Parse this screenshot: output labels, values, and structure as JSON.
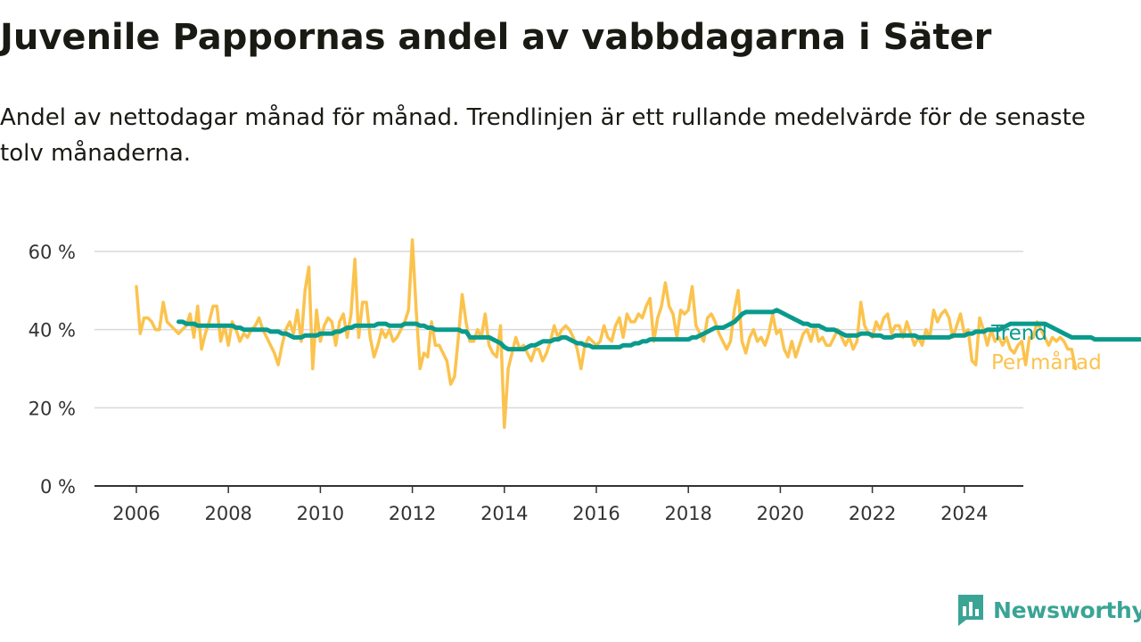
{
  "header": {
    "title": "Juvenile Pappornas andel av vabbdagarna i Säter",
    "subtitle": "Andel av nettodagar månad för månad. Trendlinjen är ett rullande medelvärde för de senaste tolv månaderna."
  },
  "brand": {
    "name": "Newsworthy",
    "color": "#3aa495",
    "icon": "bar-chart-speech-bubble-icon"
  },
  "chart_data": {
    "type": "line",
    "ylim": [
      0,
      65
    ],
    "y_ticks": [
      0,
      20,
      40,
      60
    ],
    "y_tick_labels": [
      "0 %",
      "20 %",
      "40 %",
      "60 %"
    ],
    "x_range": [
      2006,
      2024.9
    ],
    "x_ticks": [
      2006,
      2008,
      2010,
      2012,
      2014,
      2016,
      2018,
      2020,
      2022,
      2024
    ],
    "x_tick_labels": [
      "2006",
      "2008",
      "2010",
      "2012",
      "2014",
      "2016",
      "2018",
      "2020",
      "2022",
      "2024"
    ],
    "grid": "horizontal",
    "legend": "inline-right",
    "series": [
      {
        "name": "Per månad",
        "color": "#fbc34e",
        "x_start": 2006.0,
        "x_step_months": 1,
        "values": [
          51,
          39,
          43,
          43,
          42,
          40,
          40,
          47,
          42,
          41,
          40,
          39,
          40,
          41,
          44,
          38,
          46,
          35,
          39,
          42,
          46,
          46,
          37,
          41,
          36,
          42,
          40,
          37,
          39,
          38,
          40,
          41,
          43,
          40,
          38,
          36,
          34,
          31,
          36,
          40,
          42,
          39,
          45,
          37,
          50,
          56,
          30,
          45,
          37,
          41,
          43,
          42,
          36,
          42,
          44,
          38,
          44,
          58,
          38,
          47,
          47,
          38,
          33,
          36,
          40,
          38,
          40,
          37,
          38,
          40,
          42,
          45,
          63,
          45,
          30,
          34,
          33,
          42,
          36,
          36,
          34,
          32,
          26,
          28,
          38,
          49,
          42,
          37,
          37,
          40,
          38,
          44,
          36,
          34,
          33,
          41,
          15,
          30,
          34,
          38,
          35,
          36,
          34,
          32,
          35,
          35,
          32,
          34,
          37,
          41,
          38,
          40,
          41,
          40,
          38,
          35,
          30,
          36,
          38,
          37,
          36,
          37,
          41,
          38,
          37,
          41,
          43,
          38,
          44,
          42,
          42,
          44,
          43,
          46,
          48,
          37,
          43,
          46,
          52,
          46,
          44,
          38,
          45,
          44,
          45,
          51,
          41,
          39,
          37,
          43,
          44,
          42,
          39,
          37,
          35,
          37,
          45,
          50,
          37,
          34,
          38,
          40,
          37,
          38,
          36,
          39,
          44,
          39,
          40,
          35,
          33,
          37,
          33,
          36,
          39,
          40,
          37,
          41,
          37,
          38,
          36,
          36,
          38,
          40,
          38,
          36,
          38,
          35,
          37,
          47,
          41,
          39,
          38,
          42,
          40,
          43,
          44,
          39,
          41,
          41,
          38,
          42,
          39,
          36,
          38,
          36,
          40,
          38,
          45,
          42,
          44,
          45,
          43,
          38,
          41,
          44,
          39,
          40,
          32,
          31,
          43,
          40,
          36,
          40,
          37,
          38,
          36,
          38,
          35,
          34,
          36,
          37,
          31,
          38,
          38,
          42,
          40,
          38,
          36,
          38,
          37,
          38,
          37,
          35,
          35,
          30
        ]
      },
      {
        "name": "Trend",
        "color": "#0a9a8c",
        "x_start": 2006.92,
        "x_step_months": 1,
        "values": [
          42,
          42,
          41.5,
          41.5,
          41.5,
          41,
          41,
          41,
          41,
          41,
          41,
          41,
          41,
          41,
          41,
          40.5,
          40.5,
          40,
          40,
          40,
          40,
          40,
          40,
          40,
          39.5,
          39.5,
          39.5,
          39,
          39,
          38.5,
          38,
          38,
          38,
          38.5,
          38.5,
          38.5,
          38.5,
          39,
          39,
          39,
          39,
          39.5,
          39.5,
          40,
          40.5,
          40.5,
          41,
          41,
          41,
          41,
          41,
          41,
          41.5,
          41.5,
          41.5,
          41,
          41,
          41,
          41,
          41.5,
          41.5,
          41.5,
          41.5,
          41,
          41,
          40.5,
          40.5,
          40,
          40,
          40,
          40,
          40,
          40,
          40,
          39.5,
          39.5,
          38,
          38,
          38,
          38,
          38,
          38,
          37.5,
          37,
          36.5,
          35.5,
          35,
          35,
          35,
          35,
          35,
          35.5,
          36,
          36,
          36.5,
          37,
          37,
          37,
          37.5,
          37.5,
          38,
          38,
          37.5,
          37,
          36.5,
          36.5,
          36,
          36,
          35.5,
          35.5,
          35.5,
          35.5,
          35.5,
          35.5,
          35.5,
          35.5,
          36,
          36,
          36,
          36.5,
          36.5,
          37,
          37,
          37.5,
          37.5,
          37.5,
          37.5,
          37.5,
          37.5,
          37.5,
          37.5,
          37.5,
          37.5,
          37.5,
          38,
          38,
          38.5,
          39,
          39.5,
          40,
          40.5,
          40.5,
          40.5,
          41,
          41.5,
          42,
          43,
          44,
          44.5,
          44.5,
          44.5,
          44.5,
          44.5,
          44.5,
          44.5,
          44.5,
          45,
          44.5,
          44,
          43.5,
          43,
          42.5,
          42,
          41.5,
          41.5,
          41,
          41,
          41,
          40.5,
          40,
          40,
          40,
          39.5,
          39,
          38.5,
          38.5,
          38.5,
          38.5,
          39,
          39,
          39,
          38.5,
          38.5,
          38.5,
          38,
          38,
          38,
          38.5,
          38.5,
          38.5,
          38.5,
          38.5,
          38.5,
          38,
          38,
          38,
          38,
          38,
          38,
          38,
          38,
          38,
          38.5,
          38.5,
          38.5,
          38.5,
          39,
          39,
          39.5,
          39.5,
          39.5,
          40,
          40,
          40,
          40,
          40.5,
          41,
          41.5,
          41.5,
          41.5,
          41.5,
          41.5,
          41.5,
          41.5,
          41.5,
          41.5,
          41.5,
          41,
          40.5,
          40,
          39.5,
          39,
          38.5,
          38,
          38,
          38,
          38,
          38,
          38,
          37.5,
          37.5,
          37.5,
          37.5,
          37.5,
          37.5,
          37.5,
          37.5,
          37.5,
          37.5,
          37.5,
          37.5,
          37.5,
          37.5,
          37.5,
          37.5,
          37.5,
          37.5,
          37
        ]
      }
    ]
  }
}
